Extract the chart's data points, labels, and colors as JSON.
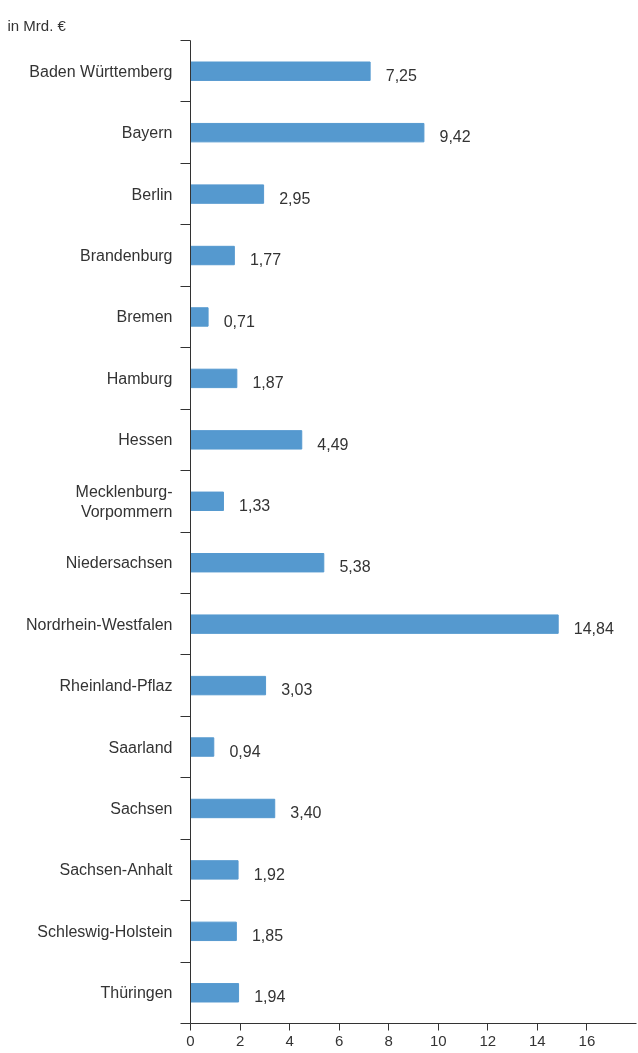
{
  "chart_data": {
    "type": "bar",
    "orientation": "horizontal",
    "categories": [
      "Baden Württemberg",
      "Bayern",
      "Berlin",
      "Brandenburg",
      "Bremen",
      "Hamburg",
      "Hessen",
      "Mecklenburg-Vorpommern",
      "Niedersachsen",
      "Nordrhein-Westfalen",
      "Rheinland-Pflaz",
      "Saarland",
      "Sachsen",
      "Sachsen-Anhalt",
      "Schleswig-Holstein",
      "Thüringen"
    ],
    "values": [
      7.25,
      9.42,
      2.95,
      1.77,
      0.71,
      1.87,
      4.49,
      1.33,
      5.38,
      14.84,
      3.03,
      0.94,
      3.4,
      1.92,
      1.85,
      1.94
    ],
    "value_labels": [
      "7,25",
      "9,42",
      "2,95",
      "1,77",
      "0,71",
      "1,87",
      "4,49",
      "1,33",
      "5,38",
      "14,84",
      "3,03",
      "0,94",
      "3,40",
      "1,92",
      "1,85",
      "1,94"
    ],
    "color": "#5599cf",
    "xlim": [
      0,
      18
    ],
    "xticks": [
      0,
      2,
      4,
      6,
      8,
      10,
      12,
      14,
      16
    ],
    "grid": false,
    "annotations": [
      "in Mrd. €"
    ]
  }
}
